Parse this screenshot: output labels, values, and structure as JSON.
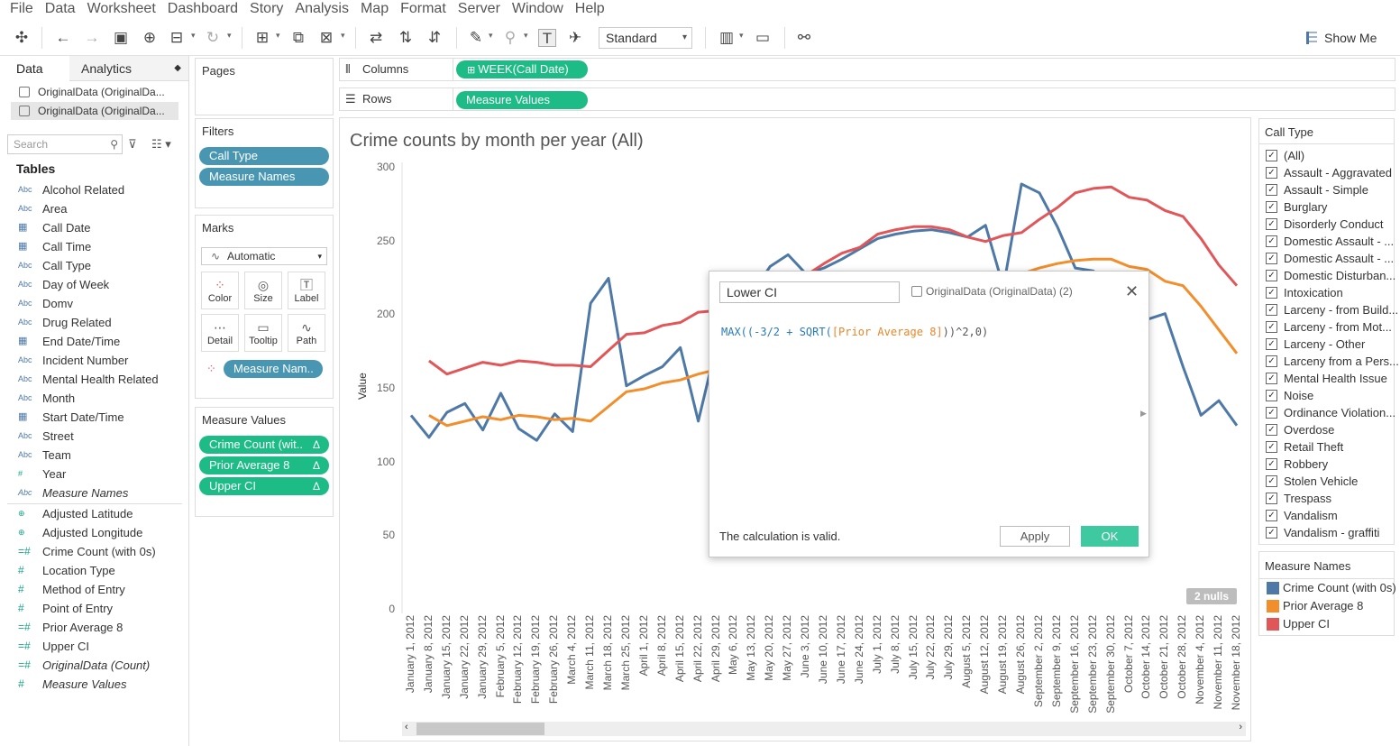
{
  "menu": [
    "File",
    "Data",
    "Worksheet",
    "Dashboard",
    "Story",
    "Analysis",
    "Map",
    "Format",
    "Server",
    "Window",
    "Help"
  ],
  "toolbar": {
    "fit": "Standard",
    "show_me": "Show Me"
  },
  "left_pane": {
    "tabs": {
      "data": "Data",
      "analytics": "Analytics"
    },
    "datasources": [
      "OriginalData (OriginalDa...",
      "OriginalData (OriginalDa..."
    ],
    "search_placeholder": "Search",
    "tables_heading": "Tables",
    "dimensions": [
      {
        "type": "Abc",
        "name": "Alcohol Related"
      },
      {
        "type": "Abc",
        "name": "Area"
      },
      {
        "type": "cal",
        "name": "Call Date"
      },
      {
        "type": "cal",
        "name": "Call Time"
      },
      {
        "type": "Abc",
        "name": "Call Type"
      },
      {
        "type": "Abc",
        "name": "Day of Week"
      },
      {
        "type": "Abc",
        "name": "Domv"
      },
      {
        "type": "Abc",
        "name": "Drug Related"
      },
      {
        "type": "cal",
        "name": "End Date/Time"
      },
      {
        "type": "Abc",
        "name": "Incident Number"
      },
      {
        "type": "Abc",
        "name": "Mental Health Related"
      },
      {
        "type": "Abc",
        "name": "Month"
      },
      {
        "type": "cal",
        "name": "Start Date/Time"
      },
      {
        "type": "Abc",
        "name": "Street"
      },
      {
        "type": "Abc",
        "name": "Team"
      },
      {
        "type": "#",
        "name": "Year"
      },
      {
        "type": "Abc",
        "name": "Measure Names",
        "italic": true
      }
    ],
    "measures": [
      {
        "type": "globe",
        "name": "Adjusted Latitude"
      },
      {
        "type": "globe",
        "name": "Adjusted Longitude"
      },
      {
        "type": "=#",
        "name": "Crime Count (with 0s)"
      },
      {
        "type": "#",
        "name": "Location Type"
      },
      {
        "type": "#",
        "name": "Method of Entry"
      },
      {
        "type": "#",
        "name": "Point of Entry"
      },
      {
        "type": "=#",
        "name": "Prior Average 8"
      },
      {
        "type": "=#",
        "name": "Upper CI"
      },
      {
        "type": "=#",
        "name": "OriginalData (Count)",
        "italic": true
      },
      {
        "type": "#",
        "name": "Measure Values",
        "italic": true
      }
    ]
  },
  "pages_label": "Pages",
  "filters": {
    "label": "Filters",
    "pills": [
      "Call Type",
      "Measure Names"
    ]
  },
  "marks": {
    "label": "Marks",
    "type": "Automatic",
    "buttons": [
      "Color",
      "Size",
      "Label",
      "Detail",
      "Tooltip",
      "Path"
    ],
    "pill": "Measure Nam.."
  },
  "measure_values": {
    "label": "Measure Values",
    "pills": [
      "Crime Count (wit..",
      "Prior Average 8",
      "Upper CI"
    ],
    "delta": "Δ"
  },
  "shelves": {
    "columns_label": "Columns",
    "columns_pill": "WEEK(Call Date)",
    "rows_label": "Rows",
    "rows_pill": "Measure Values"
  },
  "viz": {
    "title": "Crime counts by month per year (All)",
    "nulls": "2 nulls"
  },
  "chart_data": {
    "type": "line",
    "title": "Crime counts by month per year (All)",
    "ylabel": "Value",
    "ylim": [
      0,
      300
    ],
    "yticks": [
      0,
      50,
      100,
      150,
      200,
      250,
      300
    ],
    "x": [
      "January 1, 2012",
      "January 8, 2012",
      "January 15, 2012",
      "January 22, 2012",
      "January 29, 2012",
      "February 5, 2012",
      "February 12, 2012",
      "February 19, 2012",
      "February 26, 2012",
      "March 4, 2012",
      "March 11, 2012",
      "March 18, 2012",
      "March 25, 2012",
      "April 1, 2012",
      "April 8, 2012",
      "April 15, 2012",
      "April 22, 2012",
      "April 29, 2012",
      "May 6, 2012",
      "May 13, 2012",
      "May 20, 2012",
      "May 27, 2012",
      "June 3, 2012",
      "June 10, 2012",
      "June 17, 2012",
      "June 24, 2012",
      "July 1, 2012",
      "July 8, 2012",
      "July 15, 2012",
      "July 22, 2012",
      "July 29, 2012",
      "August 5, 2012",
      "August 12, 2012",
      "August 19, 2012",
      "August 26, 2012",
      "September 2, 2012",
      "September 9, 2012",
      "September 16, 2012",
      "September 23, 2012",
      "September 30, 2012",
      "October 7, 2012",
      "October 14, 2012",
      "October 21, 2012",
      "October 28, 2012",
      "November 4, 2012",
      "November 11, 2012",
      "November 18, 2012"
    ],
    "series": [
      {
        "name": "Crime Count (with 0s)",
        "color": "#4e79a7",
        "values": [
          132,
          117,
          134,
          140,
          122,
          147,
          123,
          115,
          133,
          121,
          208,
          225,
          152,
          159,
          165,
          178,
          128,
          179,
          195,
          215,
          233,
          241,
          228,
          232,
          238,
          245,
          252,
          255,
          257,
          258,
          256,
          253,
          261,
          219,
          289,
          283,
          260,
          232,
          230,
          220,
          215,
          197,
          201,
          165,
          132,
          142,
          125
        ]
      },
      {
        "name": "Prior Average 8",
        "color": "#f28e2b",
        "values": [
          null,
          132,
          125,
          128,
          131,
          129,
          132,
          131,
          129,
          130,
          128,
          138,
          148,
          150,
          154,
          156,
          160,
          163,
          168,
          175,
          180,
          185,
          190,
          195,
          198,
          200,
          205,
          208,
          210,
          213,
          215,
          218,
          222,
          226,
          228,
          232,
          235,
          237,
          238,
          238,
          233,
          231,
          223,
          220,
          206,
          190,
          174
        ]
      },
      {
        "name": "Upper CI",
        "color": "#e15759",
        "values": [
          null,
          169,
          160,
          164,
          168,
          166,
          169,
          168,
          166,
          166,
          165,
          176,
          187,
          188,
          193,
          195,
          202,
          203,
          208,
          213,
          218,
          223,
          227,
          235,
          242,
          246,
          255,
          258,
          260,
          260,
          258,
          253,
          250,
          254,
          256,
          265,
          273,
          283,
          286,
          287,
          280,
          278,
          271,
          267,
          252,
          234,
          220
        ]
      }
    ]
  },
  "legend_call_type": {
    "title": "Call Type",
    "items": [
      "(All)",
      "Assault - Aggravated",
      "Assault - Simple",
      "Burglary",
      "Disorderly Conduct",
      "Domestic Assault - ...",
      "Domestic Assault - ...",
      "Domestic Disturban...",
      "Intoxication",
      "Larceny - from Build...",
      "Larceny - from Mot...",
      "Larceny - Other",
      "Larceny from a Pers...",
      "Mental Health Issue",
      "Noise",
      "Ordinance Violation...",
      "Overdose",
      "Retail Theft",
      "Robbery",
      "Stolen Vehicle",
      "Trespass",
      "Vandalism",
      "Vandalism - graffiti"
    ]
  },
  "legend_measure_names": {
    "title": "Measure Names",
    "items": [
      {
        "name": "Crime Count (with 0s)",
        "color": "#4e79a7"
      },
      {
        "name": "Prior Average 8",
        "color": "#f28e2b"
      },
      {
        "name": "Upper CI",
        "color": "#e15759"
      }
    ]
  },
  "calc_dialog": {
    "name": "Lower CI",
    "source": "OriginalData (OriginalData) (2)",
    "formula": "MAX((-3/2 + SQRT([Prior Average 8]))^2,0)",
    "formula_fn": "MAX((-3/2 + SQRT(",
    "formula_field": "[Prior Average 8]",
    "formula_tail": "))^2,0)",
    "status": "The calculation is valid.",
    "apply": "Apply",
    "ok": "OK"
  }
}
